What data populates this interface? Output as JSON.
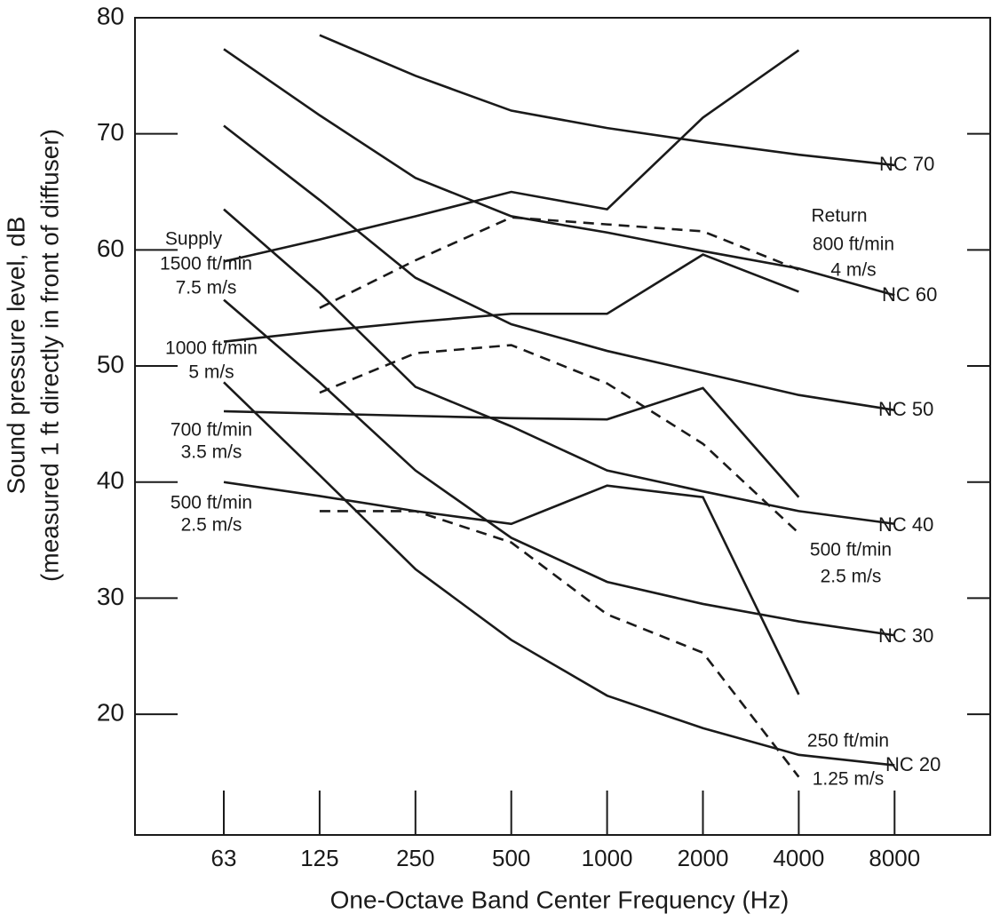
{
  "chart_data": {
    "type": "line",
    "x_label": "One-Octave Band Center Frequency (Hz)",
    "y_label": [
      "Sound pressure level, dB",
      "(measured 1 ft directly in front of diffuser)"
    ],
    "categories": [
      "63",
      "125",
      "250",
      "500",
      "1000",
      "2000",
      "4000",
      "8000"
    ],
    "ylim": [
      9.6,
      80
    ],
    "yticks": [
      20,
      30,
      40,
      50,
      60,
      70,
      80
    ],
    "grid": false,
    "annotations": [
      "Supply",
      "Return"
    ],
    "series": [
      {
        "name": "NC 70",
        "color": "#1a1a1a",
        "style": "solid",
        "values": [
          null,
          78.5,
          75,
          72,
          70.5,
          69.3,
          68.2,
          67.3
        ]
      },
      {
        "name": "NC 60",
        "color": "#1a1a1a",
        "style": "solid",
        "values": [
          77.3,
          71.6,
          66.2,
          62.9,
          61.5,
          59.9,
          58.4,
          56.1
        ]
      },
      {
        "name": "NC 50",
        "color": "#1a1a1a",
        "style": "solid",
        "values": [
          70.7,
          64.3,
          57.6,
          53.6,
          51.3,
          49.4,
          47.5,
          46.2
        ]
      },
      {
        "name": "NC 40",
        "color": "#1a1a1a",
        "style": "solid",
        "values": [
          63.5,
          56.3,
          48.2,
          44.8,
          41,
          39.2,
          37.5,
          36.4
        ]
      },
      {
        "name": "NC 30",
        "color": "#1a1a1a",
        "style": "solid",
        "values": [
          55.7,
          48.6,
          41,
          35.2,
          31.4,
          29.5,
          28,
          26.8
        ]
      },
      {
        "name": "NC 20",
        "color": "#1a1a1a",
        "style": "solid",
        "values": [
          48.6,
          40.6,
          32.5,
          26.4,
          21.6,
          18.8,
          16.5,
          15.6
        ]
      },
      {
        "name": "1500 ft/min",
        "sub": "7.5 m/s",
        "color": "#1a1a1a",
        "style": "solid",
        "values": [
          59,
          60.9,
          62.9,
          65,
          63.5,
          71.4,
          77.2,
          null
        ]
      },
      {
        "name": "1000 ft/min",
        "sub": "5 m/s",
        "color": "#1a1a1a",
        "style": "solid",
        "values": [
          52.1,
          53,
          53.8,
          54.5,
          54.5,
          59.6,
          56.4,
          null
        ]
      },
      {
        "name": "700 ft/min",
        "sub": "3.5 m/s",
        "color": "#1a1a1a",
        "style": "solid",
        "values": [
          46.1,
          45.9,
          45.7,
          45.5,
          45.4,
          48.1,
          38.7,
          null
        ]
      },
      {
        "name": "500 ft/min",
        "sub": "2.5 m/s",
        "color": "#1a1a1a",
        "style": "solid",
        "values": [
          40,
          38.8,
          37.5,
          36.4,
          39.7,
          38.7,
          21.7,
          null
        ]
      },
      {
        "name": "800 ft/min",
        "sub": "4 m/s",
        "color": "#1a1a1a",
        "style": "dashed",
        "values": [
          null,
          55,
          59.1,
          62.8,
          62.2,
          61.6,
          58.3,
          null
        ]
      },
      {
        "name": "500 ft/min",
        "sub": "2.5 m/s",
        "color": "#1a1a1a",
        "style": "dashed",
        "values": [
          null,
          47.7,
          51.1,
          51.8,
          48.5,
          43.3,
          35.6,
          null
        ]
      },
      {
        "name": "250 ft/min",
        "sub": "1.25 m/s",
        "color": "#1a1a1a",
        "style": "dashed",
        "values": [
          null,
          37.5,
          37.5,
          34.8,
          28.6,
          25.3,
          14.6,
          null
        ]
      }
    ]
  }
}
